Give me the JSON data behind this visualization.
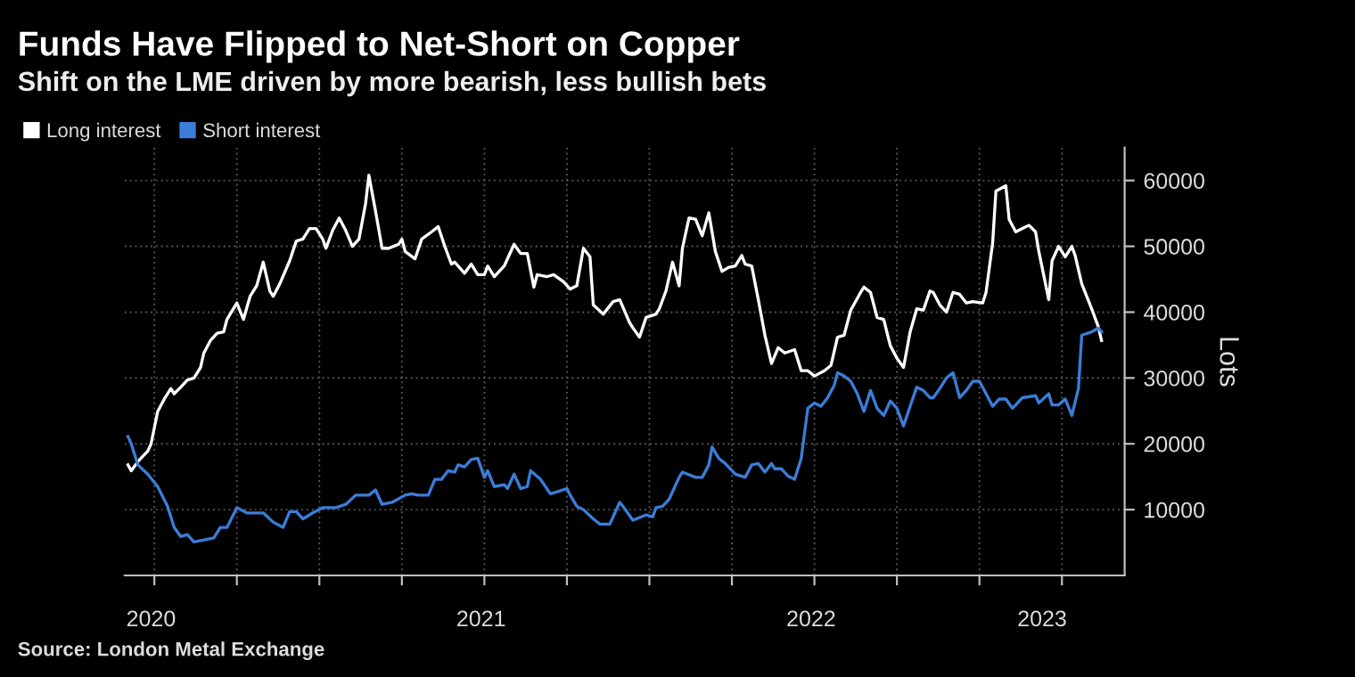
{
  "chart_data": {
    "type": "line",
    "title": "Funds Have Flipped to Net-Short on Copper",
    "subtitle": "Shift on the LME driven by more bearish, less bullish bets",
    "ylabel": "Lots",
    "annotations": [
      "Source: London Metal Exchange"
    ],
    "legend": "top left",
    "grid": true,
    "xlim": [
      2020.41,
      2023.44
    ],
    "ylim": [
      0,
      65000
    ],
    "yticks": [
      10000,
      20000,
      30000,
      40000,
      50000,
      60000
    ],
    "xticks": [
      {
        "value": 2020.5,
        "label": null
      },
      {
        "value": 2020.49,
        "label": "2020"
      },
      {
        "value": 2020.75,
        "label": null
      },
      {
        "value": 2021.0,
        "label": null
      },
      {
        "value": 2021.25,
        "label": null
      },
      {
        "value": 2021.49,
        "label": "2021"
      },
      {
        "value": 2021.5,
        "label": null
      },
      {
        "value": 2021.75,
        "label": null
      },
      {
        "value": 2022.0,
        "label": null
      },
      {
        "value": 2022.25,
        "label": null
      },
      {
        "value": 2022.5,
        "label": null
      },
      {
        "value": 2022.49,
        "label": "2022"
      },
      {
        "value": 2022.75,
        "label": null
      },
      {
        "value": 2023.0,
        "label": null
      },
      {
        "value": 2023.19,
        "label": "2023"
      },
      {
        "value": 2023.25,
        "label": null
      }
    ],
    "series": [
      {
        "name": "Long interest",
        "color": "#ffffff",
        "x": [
          2020.42,
          2020.43,
          2020.45,
          2020.48,
          2020.49,
          2020.51,
          2020.53,
          2020.55,
          2020.56,
          2020.58,
          2020.6,
          2020.62,
          2020.64,
          2020.65,
          2020.67,
          2020.69,
          2020.71,
          2020.72,
          2020.75,
          2020.77,
          2020.79,
          2020.81,
          2020.83,
          2020.85,
          2020.86,
          2020.88,
          2020.91,
          2020.93,
          2020.95,
          2020.97,
          2020.99,
          2021.01,
          2021.02,
          2021.04,
          2021.06,
          2021.08,
          2021.1,
          2021.12,
          2021.14,
          2021.15,
          2021.17,
          2021.19,
          2021.21,
          2021.24,
          2021.25,
          2021.26,
          2021.29,
          2021.31,
          2021.34,
          2021.36,
          2021.38,
          2021.4,
          2021.41,
          2021.44,
          2021.46,
          2021.48,
          2021.5,
          2021.51,
          2021.53,
          2021.56,
          2021.59,
          2021.61,
          2021.63,
          2021.65,
          2021.66,
          2021.69,
          2021.71,
          2021.74,
          2021.76,
          2021.78,
          2021.8,
          2021.82,
          2021.83,
          2021.86,
          2021.89,
          2021.91,
          2021.94,
          2021.95,
          2021.97,
          2021.99,
          2022.02,
          2022.03,
          2022.05,
          2022.07,
          2022.09,
          2022.1,
          2022.12,
          2022.14,
          2022.16,
          2022.18,
          2022.2,
          2022.22,
          2022.24,
          2022.26,
          2022.28,
          2022.29,
          2022.31,
          2022.33,
          2022.35,
          2022.37,
          2022.39,
          2022.41,
          2022.44,
          2022.46,
          2022.48,
          2022.5,
          2022.53,
          2022.55,
          2022.57,
          2022.59,
          2022.61,
          2022.64,
          2022.65,
          2022.67,
          2022.69,
          2022.71,
          2022.73,
          2022.75,
          2022.77,
          2022.79,
          2022.81,
          2022.83,
          2022.85,
          2022.86,
          2022.88,
          2022.9,
          2022.92,
          2022.94,
          2022.96,
          2022.98,
          2023.01,
          2023.02,
          2023.04,
          2023.05,
          2023.08,
          2023.09,
          2023.11,
          2023.13,
          2023.15,
          2023.17,
          2023.18,
          2023.21,
          2023.22,
          2023.24,
          2023.26,
          2023.28,
          2023.29,
          2023.31,
          2023.34,
          2023.36,
          2023.37
        ],
        "values": [
          16800,
          15900,
          17300,
          18900,
          20000,
          24900,
          26800,
          28400,
          27600,
          28600,
          29700,
          30000,
          31600,
          33800,
          35700,
          36800,
          37000,
          38900,
          41400,
          38900,
          42400,
          44000,
          47600,
          43200,
          42400,
          44300,
          47800,
          50800,
          51100,
          52700,
          52700,
          51100,
          49700,
          52400,
          54300,
          52400,
          50000,
          51100,
          56500,
          60800,
          55400,
          49700,
          49700,
          50300,
          51100,
          49200,
          48100,
          51100,
          52200,
          53000,
          50000,
          47300,
          47600,
          45900,
          47300,
          45700,
          45700,
          47000,
          45400,
          47000,
          50300,
          48900,
          48900,
          43800,
          45700,
          45400,
          45700,
          44600,
          43500,
          44000,
          49700,
          48400,
          41100,
          39700,
          41600,
          41900,
          38400,
          37600,
          36200,
          39200,
          39700,
          40500,
          43200,
          47600,
          44000,
          49700,
          54300,
          54100,
          51600,
          55100,
          49200,
          46200,
          46800,
          47000,
          48600,
          47300,
          47000,
          41900,
          36500,
          32200,
          34600,
          33800,
          34300,
          31100,
          31100,
          30300,
          31100,
          31900,
          36200,
          36500,
          40300,
          43000,
          43800,
          43000,
          39200,
          38900,
          34900,
          33000,
          31600,
          37000,
          40500,
          40300,
          43200,
          43000,
          41100,
          40000,
          43000,
          42700,
          41400,
          41600,
          41400,
          43000,
          50500,
          58400,
          59200,
          54100,
          52200,
          52700,
          53200,
          52200,
          49200,
          41900,
          47800,
          50000,
          48400,
          50000,
          48600,
          44300,
          40500,
          37800,
          35700
        ]
      },
      {
        "name": "Short interest",
        "color": "#3b7dd8",
        "x": [
          2020.42,
          2020.43,
          2020.45,
          2020.48,
          2020.51,
          2020.54,
          2020.56,
          2020.58,
          2020.6,
          2020.62,
          2020.65,
          2020.68,
          2020.7,
          2020.72,
          2020.75,
          2020.78,
          2020.83,
          2020.86,
          2020.89,
          2020.91,
          2020.93,
          2020.95,
          2020.98,
          2021.01,
          2021.05,
          2021.08,
          2021.11,
          2021.15,
          2021.17,
          2021.19,
          2021.22,
          2021.26,
          2021.28,
          2021.3,
          2021.33,
          2021.35,
          2021.37,
          2021.39,
          2021.41,
          2021.42,
          2021.44,
          2021.46,
          2021.48,
          2021.5,
          2021.51,
          2021.53,
          2021.56,
          2021.57,
          2021.59,
          2021.61,
          2021.63,
          2021.64,
          2021.67,
          2021.7,
          2021.72,
          2021.75,
          2021.76,
          2021.78,
          2021.8,
          2021.83,
          2021.85,
          2021.88,
          2021.91,
          2021.92,
          2021.95,
          2021.99,
          2022.01,
          2022.02,
          2022.04,
          2022.06,
          2022.09,
          2022.1,
          2022.14,
          2022.16,
          2022.18,
          2022.19,
          2022.21,
          2022.23,
          2022.26,
          2022.29,
          2022.31,
          2022.33,
          2022.35,
          2022.37,
          2022.38,
          2022.4,
          2022.42,
          2022.44,
          2022.46,
          2022.48,
          2022.5,
          2022.52,
          2022.54,
          2022.56,
          2022.57,
          2022.59,
          2022.61,
          2022.63,
          2022.65,
          2022.67,
          2022.69,
          2022.71,
          2022.73,
          2022.75,
          2022.77,
          2022.79,
          2022.81,
          2022.83,
          2022.85,
          2022.86,
          2022.88,
          2022.9,
          2022.92,
          2022.94,
          2022.96,
          2022.98,
          2023.0,
          2023.02,
          2023.04,
          2023.06,
          2023.08,
          2023.1,
          2023.11,
          2023.13,
          2023.17,
          2023.18,
          2023.21,
          2023.22,
          2023.24,
          2023.26,
          2023.28,
          2023.3,
          2023.31,
          2023.34,
          2023.36,
          2023.37
        ],
        "values": [
          21100,
          20000,
          16800,
          15400,
          13500,
          10500,
          7300,
          5900,
          6200,
          5100,
          5400,
          5700,
          7300,
          7300,
          10300,
          9500,
          9500,
          8100,
          7300,
          9700,
          9700,
          8600,
          9500,
          10300,
          10300,
          10800,
          12200,
          12200,
          13000,
          10800,
          11100,
          12200,
          12400,
          12200,
          12200,
          14600,
          14600,
          15900,
          15700,
          16800,
          16500,
          17600,
          17800,
          14900,
          15900,
          13500,
          13800,
          13200,
          15400,
          13200,
          13500,
          15900,
          14600,
          12400,
          12700,
          13200,
          12200,
          10500,
          10000,
          8600,
          7800,
          7800,
          11100,
          10500,
          8400,
          9200,
          8900,
          10300,
          10500,
          11600,
          14900,
          15700,
          14900,
          14900,
          16800,
          19500,
          17800,
          17000,
          15400,
          14900,
          16800,
          17000,
          15700,
          17000,
          16200,
          16200,
          15100,
          14600,
          17800,
          25400,
          26200,
          25700,
          27000,
          28900,
          30800,
          30300,
          29500,
          27600,
          24900,
          28100,
          25400,
          24300,
          26500,
          25400,
          22700,
          25700,
          28600,
          28100,
          27000,
          27000,
          28400,
          30000,
          30800,
          27000,
          28100,
          29500,
          29500,
          27600,
          25700,
          26800,
          26800,
          25400,
          25900,
          27000,
          27300,
          26200,
          27600,
          25900,
          25900,
          26800,
          24300,
          28400,
          36500,
          37000,
          37600,
          37000
        ]
      }
    ]
  }
}
